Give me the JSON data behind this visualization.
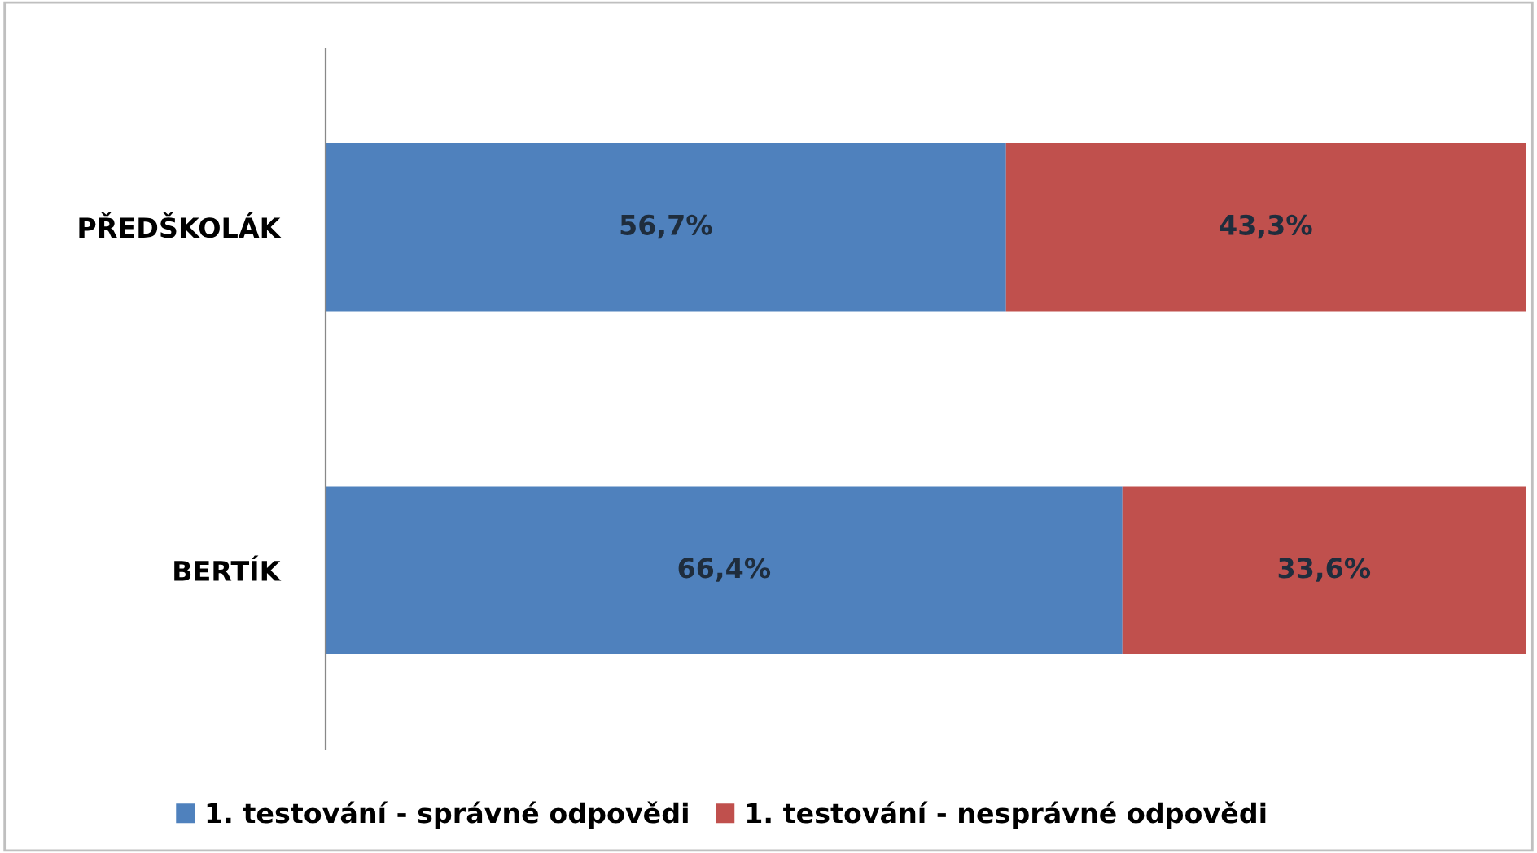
{
  "chart_data": {
    "type": "bar",
    "orientation": "horizontal",
    "stacked": true,
    "categories": [
      "PŘEDŠKOLÁK",
      "BERTÍK"
    ],
    "series": [
      {
        "name": "1. testování - správné odpovědi",
        "color": "#4f81bd",
        "values": [
          56.7,
          66.4
        ],
        "value_labels": [
          "56,7%",
          "66,4%"
        ]
      },
      {
        "name": "1. testování - nesprávné odpovědi",
        "color": "#c0504d",
        "values": [
          43.3,
          33.6
        ],
        "value_labels": [
          "43,3%",
          "33,6%"
        ]
      }
    ],
    "xlim": [
      0,
      100
    ],
    "tick_labels": "y",
    "grid": false,
    "legend": "bottom"
  }
}
